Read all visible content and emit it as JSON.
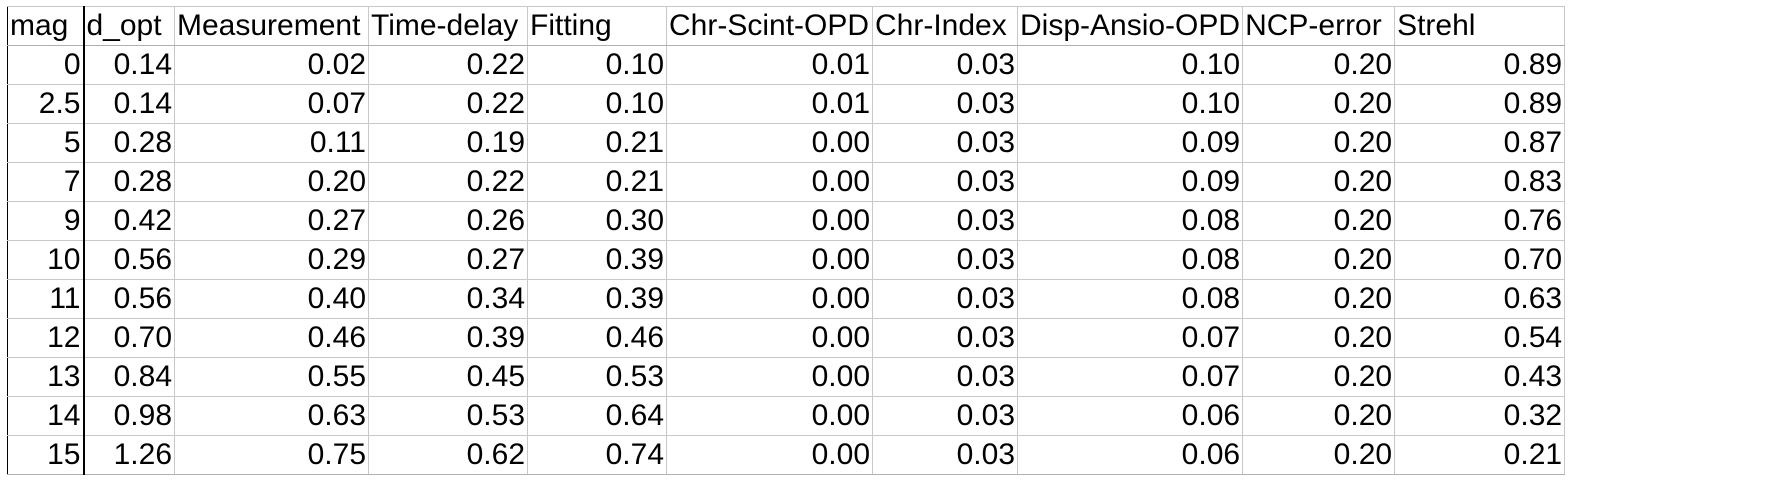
{
  "table": {
    "columns": [
      "mag",
      "d_opt",
      "Measurement",
      "Time-delay",
      "Fitting",
      "Chr-Scint-OPD",
      "Chr-Index",
      "Disp-Ansio-OPD",
      "NCP-error",
      "Strehl"
    ],
    "rows": [
      [
        "0",
        "0.14",
        "0.02",
        "0.22",
        "0.10",
        "0.01",
        "0.03",
        "0.10",
        "0.20",
        "0.89"
      ],
      [
        "2.5",
        "0.14",
        "0.07",
        "0.22",
        "0.10",
        "0.01",
        "0.03",
        "0.10",
        "0.20",
        "0.89"
      ],
      [
        "5",
        "0.28",
        "0.11",
        "0.19",
        "0.21",
        "0.00",
        "0.03",
        "0.09",
        "0.20",
        "0.87"
      ],
      [
        "7",
        "0.28",
        "0.20",
        "0.22",
        "0.21",
        "0.00",
        "0.03",
        "0.09",
        "0.20",
        "0.83"
      ],
      [
        "9",
        "0.42",
        "0.27",
        "0.26",
        "0.30",
        "0.00",
        "0.03",
        "0.08",
        "0.20",
        "0.76"
      ],
      [
        "10",
        "0.56",
        "0.29",
        "0.27",
        "0.39",
        "0.00",
        "0.03",
        "0.08",
        "0.20",
        "0.70"
      ],
      [
        "11",
        "0.56",
        "0.40",
        "0.34",
        "0.39",
        "0.00",
        "0.03",
        "0.08",
        "0.20",
        "0.63"
      ],
      [
        "12",
        "0.70",
        "0.46",
        "0.39",
        "0.46",
        "0.00",
        "0.03",
        "0.07",
        "0.20",
        "0.54"
      ],
      [
        "13",
        "0.84",
        "0.55",
        "0.45",
        "0.53",
        "0.00",
        "0.03",
        "0.07",
        "0.20",
        "0.43"
      ],
      [
        "14",
        "0.98",
        "0.63",
        "0.53",
        "0.64",
        "0.00",
        "0.03",
        "0.06",
        "0.20",
        "0.32"
      ],
      [
        "15",
        "1.26",
        "0.75",
        "0.62",
        "0.74",
        "0.00",
        "0.03",
        "0.06",
        "0.20",
        "0.21"
      ]
    ]
  }
}
